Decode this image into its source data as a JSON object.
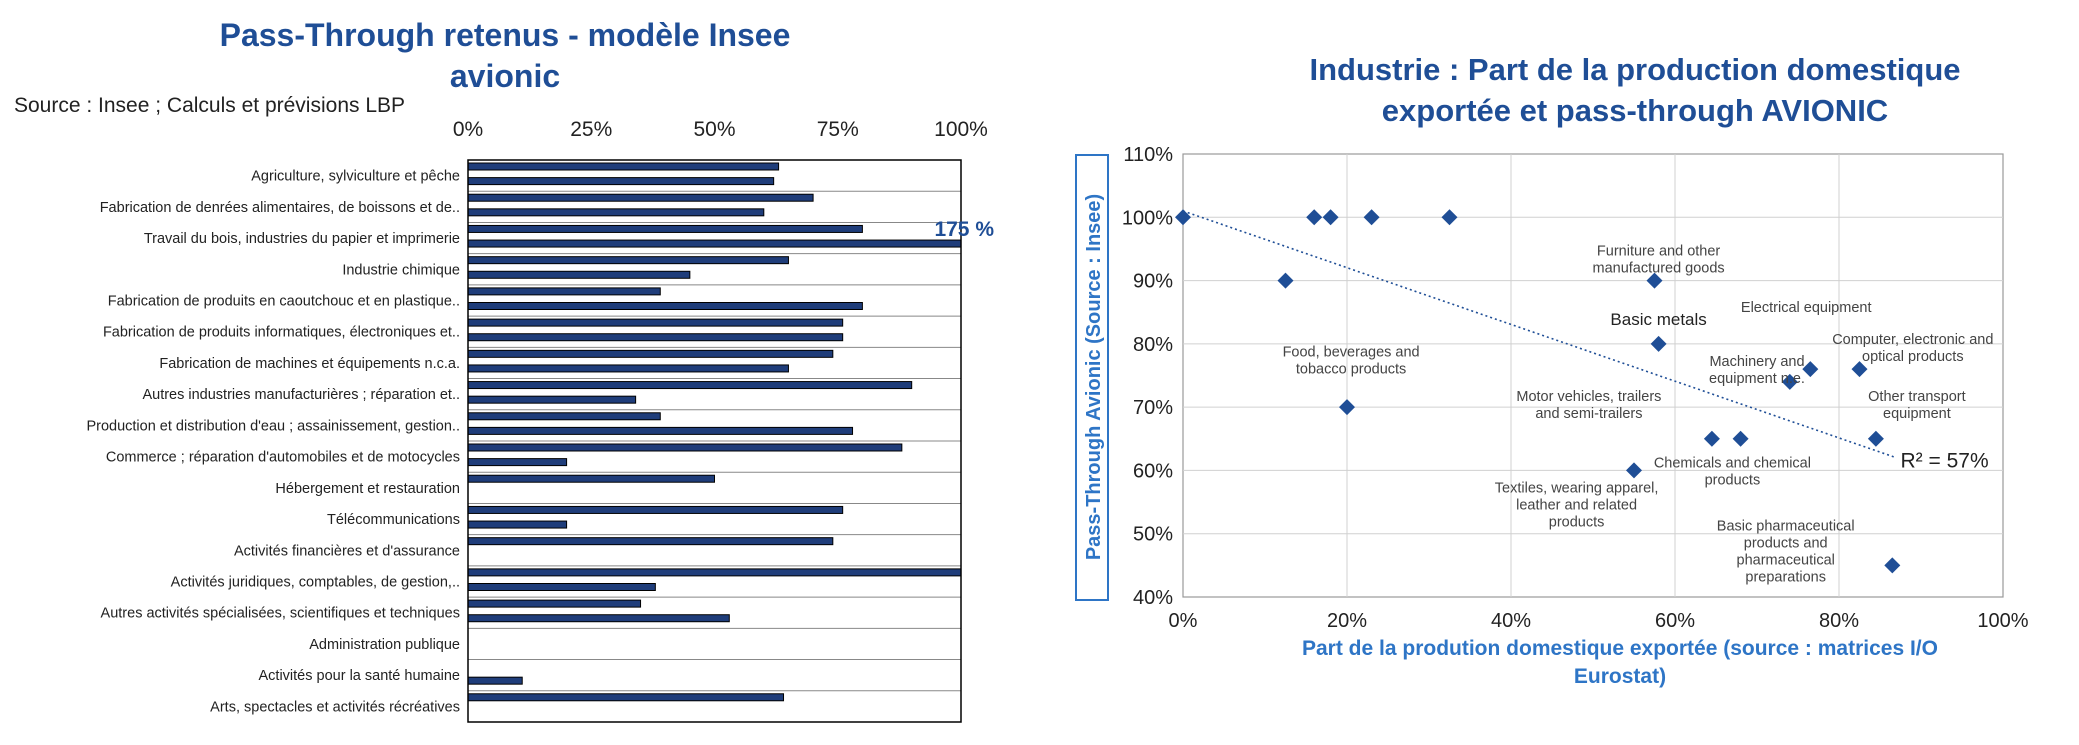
{
  "chart_data": [
    {
      "type": "bar",
      "title": "Pass-Through retenus - modèle Insee avionic",
      "subtitle": "Source : Insee ; Calculs et prévisions LBP",
      "xlim": [
        0,
        100
      ],
      "ticks": [
        "0%",
        "25%",
        "50%",
        "75%",
        "100%"
      ],
      "overflow_label": "175 %",
      "bar_color": "#1f3d7a",
      "categories": [
        "Agriculture, sylviculture et pêche",
        "Fabrication de denrées alimentaires, de boissons et de..",
        "Travail du bois, industries du papier et imprimerie",
        "Industrie chimique",
        "Fabrication de produits en caoutchouc et en plastique..",
        "Fabrication de produits informatiques, électroniques et..",
        "Fabrication de machines et équipements n.c.a.",
        "Autres industries manufacturières ; réparation et..",
        "Production et distribution d'eau ; assainissement, gestion..",
        "Commerce ; réparation d'automobiles et de motocycles",
        "Hébergement et restauration",
        "Télécommunications",
        "Activités financières et d'assurance",
        "Activités juridiques, comptables, de gestion,..",
        "Autres activités spécialisées, scientifiques et techniques",
        "Administration publique",
        "Activités pour la santé humaine",
        "Arts, spectacles et activités récréatives"
      ],
      "bars": [
        [
          63,
          62
        ],
        [
          70,
          60
        ],
        [
          80,
          175
        ],
        [
          65,
          45
        ],
        [
          39,
          80
        ],
        [
          76,
          76
        ],
        [
          74,
          65
        ],
        [
          90,
          34
        ],
        [
          39,
          78
        ],
        [
          88,
          20
        ],
        [
          50,
          0
        ],
        [
          76,
          20
        ],
        [
          74,
          0
        ],
        [
          100,
          38
        ],
        [
          35,
          53
        ],
        [
          0,
          0
        ],
        [
          0,
          11
        ],
        [
          64,
          0
        ]
      ]
    },
    {
      "type": "scatter",
      "title": "Industrie : Part de la production domestique exportée et pass-through AVIONIC",
      "xlabel": "Part de la prodution domestique exportée (source : matrices I/O Eurostat)",
      "ylabel": "Pass-Through Avionic (Source : Insee)",
      "xlim": [
        0,
        100
      ],
      "ylim": [
        40,
        110
      ],
      "xticks": [
        "0%",
        "20%",
        "40%",
        "60%",
        "80%",
        "100%"
      ],
      "yticks": [
        "40%",
        "50%",
        "60%",
        "70%",
        "80%",
        "90%",
        "100%",
        "110%"
      ],
      "grid": true,
      "marker_color": "#1f4e96",
      "trend_label": "R² = 57%",
      "trendline": [
        [
          0,
          101
        ],
        [
          87,
          62
        ]
      ],
      "points": [
        {
          "x": 0,
          "y": 100
        },
        {
          "x": 12.5,
          "y": 90
        },
        {
          "x": 16,
          "y": 100
        },
        {
          "x": 18,
          "y": 100
        },
        {
          "x": 23,
          "y": 100
        },
        {
          "x": 32.5,
          "y": 100
        },
        {
          "x": 20,
          "y": 70
        },
        {
          "x": 55,
          "y": 60
        },
        {
          "x": 57.5,
          "y": 90
        },
        {
          "x": 58,
          "y": 80
        },
        {
          "x": 64.5,
          "y": 65
        },
        {
          "x": 68,
          "y": 65
        },
        {
          "x": 74,
          "y": 74
        },
        {
          "x": 76.5,
          "y": 76
        },
        {
          "x": 82.5,
          "y": 76
        },
        {
          "x": 84.5,
          "y": 65
        },
        {
          "x": 86.5,
          "y": 45
        }
      ],
      "annotations": [
        {
          "lines": [
            "Furniture and other",
            "manufactured goods"
          ],
          "x": 58,
          "y": 94
        },
        {
          "lines": [
            "Basic metals"
          ],
          "x": 58,
          "y": 83
        },
        {
          "lines": [
            "Electrical equipment"
          ],
          "x": 76,
          "y": 85
        },
        {
          "lines": [
            "Computer, electronic and",
            "optical products"
          ],
          "x": 89,
          "y": 80
        },
        {
          "lines": [
            "Machinery and",
            "equipment n.e."
          ],
          "x": 70,
          "y": 76.5
        },
        {
          "lines": [
            "Food, beverages and",
            "tobacco products"
          ],
          "x": 20.5,
          "y": 78
        },
        {
          "lines": [
            "Motor vehicles, trailers",
            "and semi-trailers"
          ],
          "x": 49.5,
          "y": 71
        },
        {
          "lines": [
            "Other transport",
            "equipment"
          ],
          "x": 89.5,
          "y": 71
        },
        {
          "lines": [
            "Chemicals and chemical",
            "products"
          ],
          "x": 67,
          "y": 60.5
        },
        {
          "lines": [
            "Textiles, wearing apparel,",
            "leather and related",
            "products"
          ],
          "x": 48,
          "y": 56.5
        },
        {
          "lines": [
            "Basic pharmaceutical",
            "products and",
            "pharmaceutical",
            "preparations"
          ],
          "x": 73.5,
          "y": 50.5
        }
      ]
    }
  ]
}
